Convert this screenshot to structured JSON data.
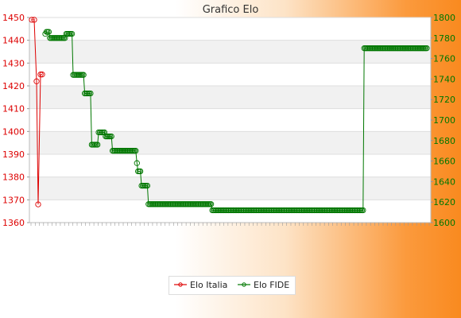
{
  "chart_data": {
    "type": "line",
    "title": "Grafico Elo",
    "y_left": {
      "ylim": [
        1360,
        1450
      ],
      "ticks": [
        "1360",
        "1370",
        "1380",
        "1390",
        "1400",
        "1410",
        "1420",
        "1430",
        "1440",
        "1450"
      ],
      "color": "#dd0000"
    },
    "y_right": {
      "ylim": [
        1600,
        1800
      ],
      "ticks": [
        "1600",
        "1620",
        "1640",
        "1660",
        "1680",
        "1700",
        "1720",
        "1740",
        "1760",
        "1780",
        "1800"
      ],
      "color": "#007700"
    },
    "grid": true,
    "legend": "bottom-center",
    "x_tick_count": 96,
    "series": [
      {
        "name": "Elo Italia",
        "color": "#dd0000",
        "axis": "left",
        "values": [
          1449,
          1449,
          1422,
          1368,
          1425,
          1425
        ]
      },
      {
        "name": "Elo FIDE",
        "color": "#007700",
        "axis": "right",
        "values": [
          1784,
          1786,
          1786,
          1786,
          1780,
          1780,
          1780,
          1780,
          1780,
          1780,
          1780,
          1780,
          1780,
          1780,
          1780,
          1780,
          1780,
          1780,
          1784,
          1784,
          1784,
          1784,
          1784,
          1784,
          1744,
          1744,
          1744,
          1744,
          1744,
          1744,
          1744,
          1744,
          1744,
          1744,
          1726,
          1726,
          1726,
          1726,
          1726,
          1726,
          1676,
          1676,
          1676,
          1676,
          1676,
          1676,
          1688,
          1688,
          1688,
          1688,
          1688,
          1688,
          1684,
          1684,
          1684,
          1684,
          1684,
          1684,
          1670,
          1670,
          1670,
          1670,
          1670,
          1670,
          1670,
          1670,
          1670,
          1670,
          1670,
          1670,
          1670,
          1670,
          1670,
          1670,
          1670,
          1670,
          1670,
          1670,
          1670,
          1658,
          1650,
          1650,
          1650,
          1636,
          1636,
          1636,
          1636,
          1636,
          1636,
          1618,
          1618,
          1618,
          1618,
          1618,
          1618,
          1618,
          1618,
          1618,
          1618,
          1618,
          1618,
          1618,
          1618,
          1618,
          1618,
          1618,
          1618,
          1618,
          1618,
          1618,
          1618,
          1618,
          1618,
          1618,
          1618,
          1618,
          1618,
          1618,
          1618,
          1618,
          1618,
          1618,
          1618,
          1618,
          1618,
          1618,
          1618,
          1618,
          1618,
          1618,
          1618,
          1618,
          1618,
          1618,
          1618,
          1618,
          1618,
          1618,
          1618,
          1618,
          1618,
          1618,
          1618,
          1618,
          1612,
          1612,
          1612,
          1612,
          1612,
          1612,
          1612,
          1612,
          1612,
          1612,
          1612,
          1612,
          1612,
          1612,
          1612,
          1612,
          1612,
          1612,
          1612,
          1612,
          1612,
          1612,
          1612,
          1612,
          1612,
          1612,
          1612,
          1612,
          1612,
          1612,
          1612,
          1612,
          1612,
          1612,
          1612,
          1612,
          1612,
          1612,
          1612,
          1612,
          1612,
          1612,
          1612,
          1612,
          1612,
          1612,
          1612,
          1612,
          1612,
          1612,
          1612,
          1612,
          1612,
          1612,
          1612,
          1612,
          1612,
          1612,
          1612,
          1612,
          1612,
          1612,
          1612,
          1612,
          1612,
          1612,
          1612,
          1612,
          1612,
          1612,
          1612,
          1612,
          1612,
          1612,
          1612,
          1612,
          1612,
          1612,
          1612,
          1612,
          1612,
          1612,
          1612,
          1612,
          1612,
          1612,
          1612,
          1612,
          1612,
          1612,
          1612,
          1612,
          1612,
          1612,
          1612,
          1612,
          1612,
          1612,
          1612,
          1612,
          1612,
          1612,
          1612,
          1612,
          1612,
          1612,
          1612,
          1612,
          1612,
          1612,
          1612,
          1612,
          1612,
          1612,
          1612,
          1612,
          1612,
          1612,
          1612,
          1612,
          1612,
          1612,
          1612,
          1612,
          1612,
          1612,
          1612,
          1612,
          1612,
          1612,
          1612,
          1770,
          1770,
          1770,
          1770,
          1770,
          1770,
          1770,
          1770,
          1770,
          1770,
          1770,
          1770,
          1770,
          1770,
          1770,
          1770,
          1770,
          1770,
          1770,
          1770,
          1770,
          1770,
          1770,
          1770,
          1770,
          1770,
          1770,
          1770,
          1770,
          1770,
          1770,
          1770,
          1770,
          1770,
          1770,
          1770,
          1770,
          1770,
          1770,
          1770,
          1770,
          1770,
          1770,
          1770,
          1770,
          1770,
          1770,
          1770,
          1770,
          1770,
          1770,
          1770,
          1770,
          1770,
          1770
        ]
      }
    ]
  }
}
